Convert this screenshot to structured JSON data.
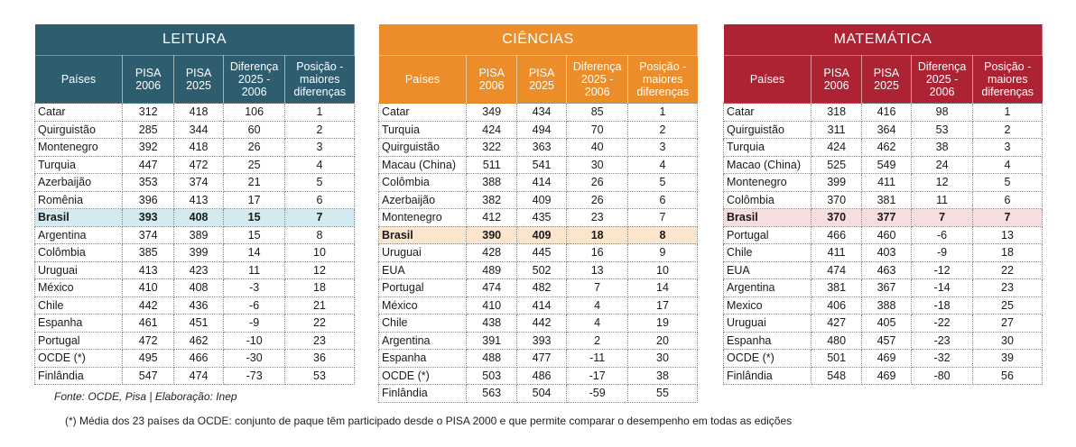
{
  "headers": {
    "paises": "Países",
    "pisa2006": "PISA\n2006",
    "pisa2025": "PISA\n2025",
    "diferenca": "Diferença\n2025 -\n2006",
    "posicao": "Posição -\nmaiores\ndiferenças"
  },
  "tables": [
    {
      "title": "LEITURA",
      "highlight_color": "#d3eaf1",
      "header_color": "#2d5d6f",
      "rows": [
        [
          "Catar",
          "312",
          "418",
          "106",
          "1"
        ],
        [
          "Quirguistão",
          "285",
          "344",
          "60",
          "2"
        ],
        [
          "Montenegro",
          "392",
          "418",
          "26",
          "3"
        ],
        [
          "Turquia",
          "447",
          "472",
          "25",
          "4"
        ],
        [
          "Azerbaijão",
          "353",
          "374",
          "21",
          "5"
        ],
        [
          "Romênia",
          "396",
          "413",
          "17",
          "6"
        ],
        [
          "Brasil",
          "393",
          "408",
          "15",
          "7"
        ],
        [
          "Argentina",
          "374",
          "389",
          "15",
          "8"
        ],
        [
          "Colômbia",
          "385",
          "399",
          "14",
          "10"
        ],
        [
          "Uruguai",
          "413",
          "423",
          "11",
          "12"
        ],
        [
          "México",
          "410",
          "408",
          "-3",
          "18"
        ],
        [
          "Chile",
          "442",
          "436",
          "-6",
          "21"
        ],
        [
          "Espanha",
          "461",
          "451",
          "-9",
          "22"
        ],
        [
          "Portugal",
          "472",
          "462",
          "-10",
          "23"
        ],
        [
          "OCDE (*)",
          "495",
          "466",
          "-30",
          "36"
        ],
        [
          "Finlândia",
          "547",
          "474",
          "-73",
          "53"
        ]
      ],
      "highlight_row": 6
    },
    {
      "title": "CIÊNCIAS",
      "highlight_color": "#fbe5cc",
      "header_color": "#ec8d2a",
      "rows": [
        [
          "Catar",
          "349",
          "434",
          "85",
          "1"
        ],
        [
          "Turquia",
          "424",
          "494",
          "70",
          "2"
        ],
        [
          "Quirguistão",
          "322",
          "363",
          "40",
          "3"
        ],
        [
          "Macau (China)",
          "511",
          "541",
          "30",
          "4"
        ],
        [
          "Colômbia",
          "388",
          "414",
          "26",
          "5"
        ],
        [
          "Azerbaijão",
          "382",
          "409",
          "26",
          "6"
        ],
        [
          "Montenegro",
          "412",
          "435",
          "23",
          "7"
        ],
        [
          "Brasil",
          "390",
          "409",
          "18",
          "8"
        ],
        [
          "Uruguai",
          "428",
          "445",
          "16",
          "9"
        ],
        [
          "EUA",
          "489",
          "502",
          "13",
          "10"
        ],
        [
          "Portugal",
          "474",
          "482",
          "7",
          "14"
        ],
        [
          "México",
          "410",
          "414",
          "4",
          "17"
        ],
        [
          "Chile",
          "438",
          "442",
          "4",
          "19"
        ],
        [
          "Argentina",
          "391",
          "393",
          "2",
          "20"
        ],
        [
          "Espanha",
          "488",
          "477",
          "-11",
          "30"
        ],
        [
          "OCDE (*)",
          "503",
          "486",
          "-17",
          "38"
        ],
        [
          "Finlândia",
          "563",
          "504",
          "-59",
          "55"
        ]
      ],
      "highlight_row": 7
    },
    {
      "title": "MATEMÁTICA",
      "highlight_color": "#f6dde0",
      "header_color": "#ae2334",
      "rows": [
        [
          "Catar",
          "318",
          "416",
          "98",
          "1"
        ],
        [
          "Quirguistão",
          "311",
          "364",
          "53",
          "2"
        ],
        [
          "Turquia",
          "424",
          "462",
          "38",
          "3"
        ],
        [
          "Macao (China)",
          "525",
          "549",
          "24",
          "4"
        ],
        [
          "Montenegro",
          "399",
          "411",
          "12",
          "5"
        ],
        [
          "Colômbia",
          "370",
          "381",
          "11",
          "6"
        ],
        [
          "Brasil",
          "370",
          "377",
          "7",
          "7"
        ],
        [
          "Portugal",
          "466",
          "460",
          "-6",
          "13"
        ],
        [
          "Chile",
          "411",
          "403",
          "-9",
          "18"
        ],
        [
          "EUA",
          "474",
          "463",
          "-12",
          "22"
        ],
        [
          "Argentina",
          "381",
          "367",
          "-14",
          "23"
        ],
        [
          "Mexico",
          "406",
          "388",
          "-18",
          "25"
        ],
        [
          "Uruguai",
          "427",
          "405",
          "-22",
          "27"
        ],
        [
          "Espanha",
          "480",
          "457",
          "-23",
          "30"
        ],
        [
          "OCDE (*)",
          "501",
          "469",
          "-32",
          "39"
        ],
        [
          "Finlândia",
          "548",
          "469",
          "-80",
          "56"
        ]
      ],
      "highlight_row": 6
    }
  ],
  "fonte": "Fonte: OCDE, Pisa | Elaboração: Inep",
  "nota": "(*) Média dos 23 países da OCDE: conjunto de paque têm participado desde o PISA 2000 e que permite comparar o desempenho em todas as edições"
}
